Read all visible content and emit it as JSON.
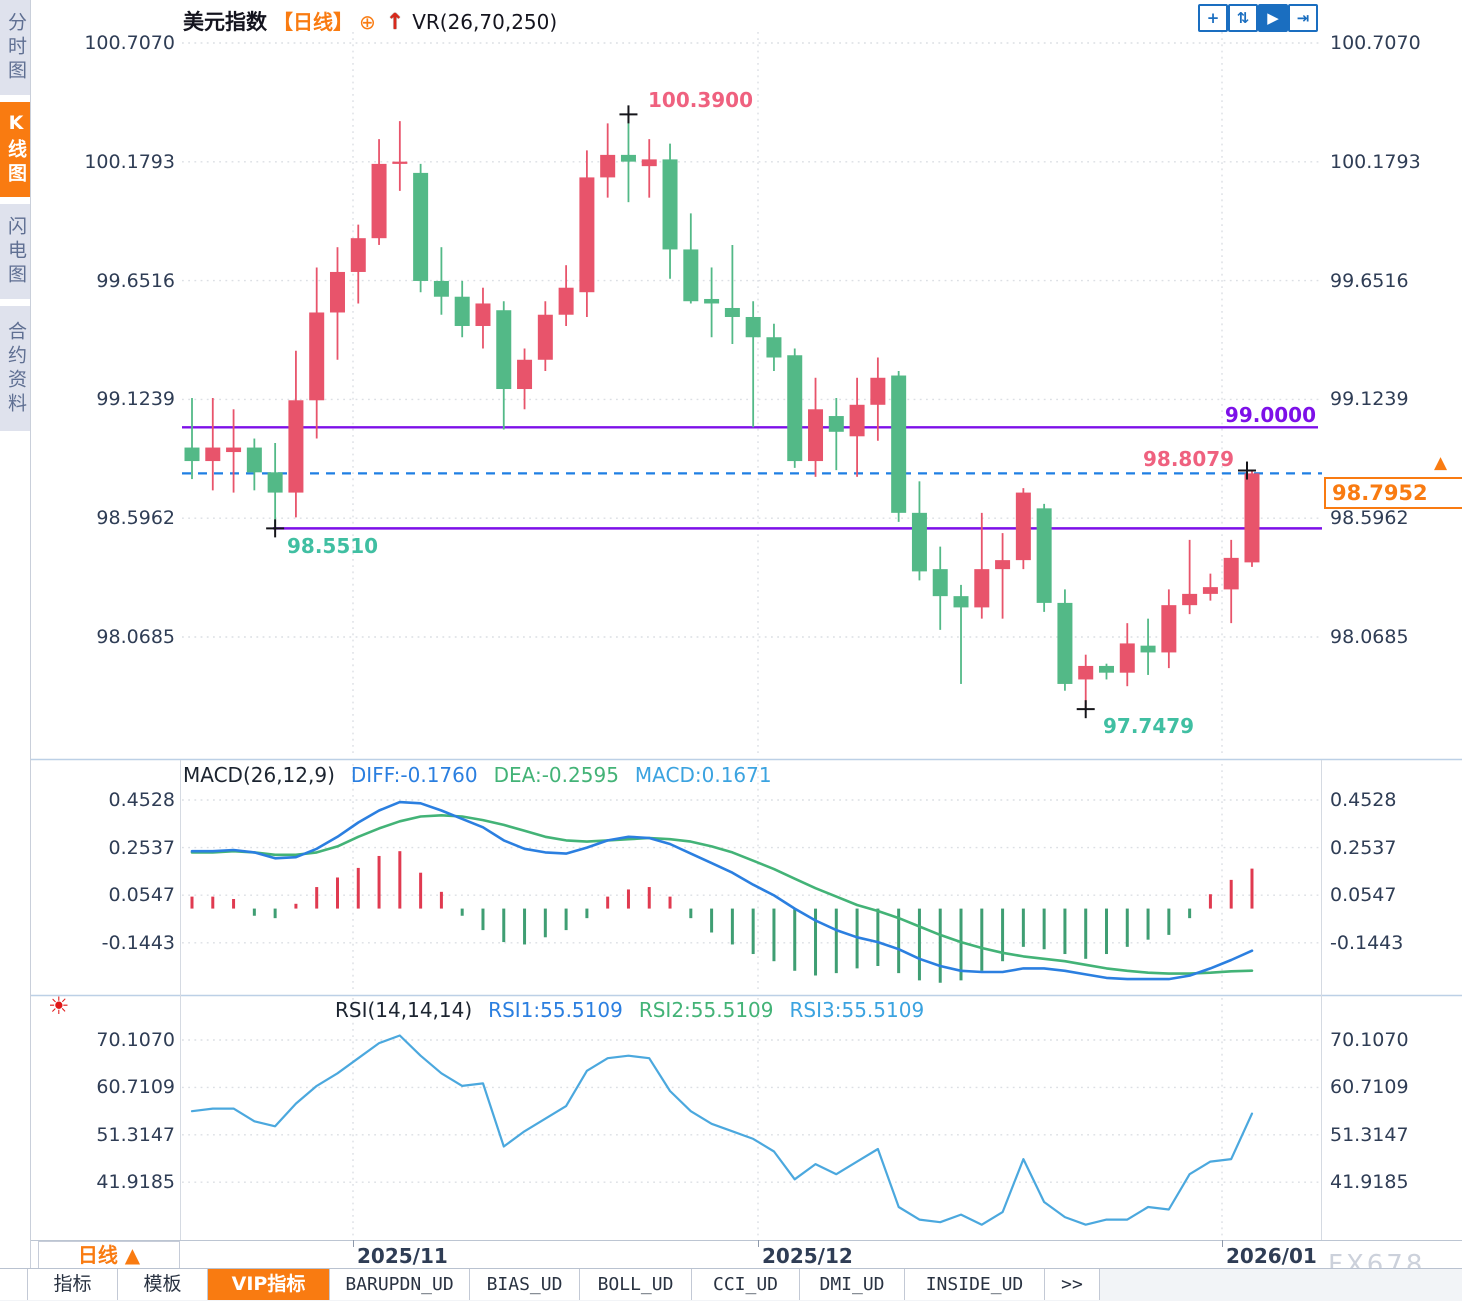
{
  "header": {
    "title": "美元指数",
    "period_tag": "【日线】",
    "plus_icon": "⊕",
    "arrow_icon": "↑",
    "indicator": "VR(26,70,250)"
  },
  "sidebar": {
    "items": [
      {
        "label": "分时图",
        "active": false
      },
      {
        "label": "K线图",
        "active": true
      },
      {
        "label": "闪电图",
        "active": false
      },
      {
        "label": "合约资料",
        "active": false
      }
    ]
  },
  "toolbar_icons": [
    {
      "name": "crosshair-icon",
      "glyph": "+",
      "active": false
    },
    {
      "name": "axis-scale-icon",
      "glyph": "⇅",
      "active": false
    },
    {
      "name": "play-icon",
      "glyph": "▶",
      "active": true
    },
    {
      "name": "exit-right-icon",
      "glyph": "⇥",
      "active": false
    }
  ],
  "price_axis": [
    "100.7070",
    "100.1793",
    "99.6516",
    "99.1239",
    "98.5962",
    "98.0685"
  ],
  "macd_axis": [
    "0.4528",
    "0.2537",
    "0.0547",
    "-0.1443"
  ],
  "rsi_axis": [
    "70.1070",
    "60.7109",
    "51.3147",
    "41.9185"
  ],
  "x_axis": [
    "2025/11",
    "2025/12",
    "2026/01"
  ],
  "annotations": {
    "swing_high": "100.3900",
    "early_low": "98.5510",
    "swing_low": "97.7479",
    "hline_level": "99.0000",
    "day_high": "98.8079",
    "last_price": "98.7952",
    "price_arrow": "▲"
  },
  "macd_header": {
    "name": "MACD(26,12,9)",
    "diff": "DIFF:-0.1760",
    "dea": "DEA:-0.2595",
    "macd": "MACD:0.1671"
  },
  "rsi_header": {
    "name": "RSI(14,14,14)",
    "rsi1": "RSI1:55.5109",
    "rsi2": "RSI2:55.5109",
    "rsi3": "RSI3:55.5109"
  },
  "sun_icon": "☀",
  "period_button": "日线 ▲",
  "tabs": [
    {
      "label": "指标",
      "active": false,
      "mono": false
    },
    {
      "label": "模板",
      "active": false,
      "mono": false
    },
    {
      "label": "VIP指标",
      "active": true,
      "mono": false
    },
    {
      "label": "BARUPDN_UD",
      "active": false,
      "mono": true
    },
    {
      "label": "BIAS_UD",
      "active": false,
      "mono": true
    },
    {
      "label": "BOLL_UD",
      "active": false,
      "mono": true
    },
    {
      "label": "CCI_UD",
      "active": false,
      "mono": true
    },
    {
      "label": "DMI_UD",
      "active": false,
      "mono": true
    },
    {
      "label": "INSIDE_UD",
      "active": false,
      "mono": true
    },
    {
      "label": ">>",
      "active": false,
      "mono": true
    }
  ],
  "watermark": "FX678",
  "colors": {
    "accent_orange": "#f97b11",
    "candle_up": "#e8546b",
    "candle_down": "#53b987",
    "purple_line": "#7d10e8",
    "dashed_blue": "#1f7fe3",
    "pink_label": "#ef617f",
    "teal_label": "#40bfa2",
    "diff_blue": "#2b7fe0",
    "dea_green": "#43b377",
    "macd_cyan": "#3ba3e0",
    "rsi_line": "#4ba8de",
    "hist_up": "#e03a50",
    "hist_down": "#3f9e73",
    "axis_text": "#2f3d55",
    "icon_blue": "#1a6ec0",
    "grid": "#dcdfe4"
  },
  "chart_data": {
    "type": "candlestick+macd+rsi",
    "title": "美元指数 日线 (US Dollar Index, daily)",
    "price_axis_ticks": [
      100.707,
      100.1793,
      99.6516,
      99.1239,
      98.5962,
      98.0685
    ],
    "macd_axis_ticks": [
      0.4528,
      0.2537,
      0.0547,
      -0.1443
    ],
    "rsi_axis_ticks": [
      70.107,
      60.7109,
      51.3147,
      41.9185
    ],
    "x_tick_labels": [
      "2025/11",
      "2025/12",
      "2026/01"
    ],
    "horizontal_lines": [
      99.0,
      98.551
    ],
    "last_price_line": 98.7952,
    "marked_points": {
      "high": 100.39,
      "early_low": 98.551,
      "low": 97.7479,
      "day_high": 98.8079
    },
    "candles_ohlc": [
      [
        98.91,
        99.13,
        98.77,
        98.85
      ],
      [
        98.85,
        99.13,
        98.72,
        98.91
      ],
      [
        98.89,
        99.08,
        98.71,
        98.91
      ],
      [
        98.91,
        98.95,
        98.72,
        98.8
      ],
      [
        98.8,
        98.93,
        98.551,
        98.71
      ],
      [
        98.71,
        99.34,
        98.6,
        99.12
      ],
      [
        99.12,
        99.71,
        98.95,
        99.51
      ],
      [
        99.51,
        99.8,
        99.3,
        99.69
      ],
      [
        99.69,
        99.9,
        99.55,
        99.84
      ],
      [
        99.84,
        100.28,
        99.81,
        100.17
      ],
      [
        100.17,
        100.36,
        100.05,
        100.18
      ],
      [
        100.13,
        100.17,
        99.6,
        99.65
      ],
      [
        99.65,
        99.8,
        99.5,
        99.58
      ],
      [
        99.58,
        99.65,
        99.4,
        99.45
      ],
      [
        99.45,
        99.62,
        99.35,
        99.55
      ],
      [
        99.52,
        99.56,
        98.99,
        99.17
      ],
      [
        99.17,
        99.35,
        99.08,
        99.3
      ],
      [
        99.3,
        99.56,
        99.25,
        99.5
      ],
      [
        99.5,
        99.72,
        99.45,
        99.62
      ],
      [
        99.6,
        100.23,
        99.49,
        100.11
      ],
      [
        100.11,
        100.35,
        100.02,
        100.21
      ],
      [
        100.21,
        100.39,
        100.0,
        100.18
      ],
      [
        100.16,
        100.28,
        100.02,
        100.19
      ],
      [
        100.19,
        100.26,
        99.66,
        99.79
      ],
      [
        99.79,
        99.95,
        99.55,
        99.56
      ],
      [
        99.57,
        99.71,
        99.4,
        99.55
      ],
      [
        99.53,
        99.81,
        99.37,
        99.49
      ],
      [
        99.49,
        99.56,
        99.0,
        99.4
      ],
      [
        99.4,
        99.46,
        99.25,
        99.31
      ],
      [
        99.32,
        99.35,
        98.82,
        98.85
      ],
      [
        98.85,
        99.22,
        98.78,
        99.08
      ],
      [
        99.05,
        99.13,
        98.81,
        98.98
      ],
      [
        98.96,
        99.22,
        98.78,
        99.1
      ],
      [
        99.1,
        99.31,
        98.94,
        99.22
      ],
      [
        99.23,
        99.25,
        98.58,
        98.62
      ],
      [
        98.62,
        98.76,
        98.32,
        98.36
      ],
      [
        98.37,
        98.47,
        98.1,
        98.25
      ],
      [
        98.25,
        98.3,
        97.86,
        98.2
      ],
      [
        98.2,
        98.62,
        98.15,
        98.37
      ],
      [
        98.37,
        98.53,
        98.15,
        98.41
      ],
      [
        98.41,
        98.73,
        98.37,
        98.71
      ],
      [
        98.64,
        98.66,
        98.18,
        98.22
      ],
      [
        98.22,
        98.28,
        97.83,
        97.86
      ],
      [
        97.88,
        97.99,
        97.7479,
        97.94
      ],
      [
        97.94,
        97.95,
        97.88,
        97.91
      ],
      [
        97.91,
        98.13,
        97.85,
        98.04
      ],
      [
        98.03,
        98.15,
        97.9,
        98.0
      ],
      [
        98.0,
        98.28,
        97.93,
        98.21
      ],
      [
        98.21,
        98.5,
        98.17,
        98.26
      ],
      [
        98.26,
        98.35,
        98.23,
        98.29
      ],
      [
        98.28,
        98.5,
        98.13,
        98.42
      ],
      [
        98.4,
        98.8079,
        98.38,
        98.7952
      ]
    ],
    "macd": {
      "diff": [
        0.24,
        0.24,
        0.245,
        0.235,
        0.21,
        0.215,
        0.25,
        0.3,
        0.36,
        0.41,
        0.445,
        0.44,
        0.41,
        0.375,
        0.34,
        0.285,
        0.25,
        0.235,
        0.23,
        0.255,
        0.285,
        0.3,
        0.295,
        0.27,
        0.23,
        0.19,
        0.15,
        0.1,
        0.055,
        0.0,
        -0.05,
        -0.09,
        -0.12,
        -0.14,
        -0.17,
        -0.21,
        -0.24,
        -0.26,
        -0.265,
        -0.265,
        -0.25,
        -0.25,
        -0.26,
        -0.275,
        -0.29,
        -0.295,
        -0.295,
        -0.295,
        -0.28,
        -0.25,
        -0.215,
        -0.176
      ],
      "dea": [
        0.235,
        0.235,
        0.24,
        0.235,
        0.225,
        0.225,
        0.235,
        0.26,
        0.3,
        0.335,
        0.365,
        0.385,
        0.39,
        0.385,
        0.37,
        0.35,
        0.325,
        0.3,
        0.285,
        0.28,
        0.285,
        0.29,
        0.295,
        0.29,
        0.28,
        0.26,
        0.235,
        0.2,
        0.165,
        0.125,
        0.085,
        0.05,
        0.015,
        -0.01,
        -0.04,
        -0.075,
        -0.11,
        -0.14,
        -0.165,
        -0.185,
        -0.2,
        -0.21,
        -0.22,
        -0.235,
        -0.25,
        -0.26,
        -0.268,
        -0.272,
        -0.272,
        -0.268,
        -0.262,
        -0.2595
      ],
      "hist": [
        0.05,
        0.05,
        0.04,
        -0.03,
        -0.04,
        0.02,
        0.09,
        0.13,
        0.17,
        0.22,
        0.24,
        0.15,
        0.07,
        -0.03,
        -0.09,
        -0.14,
        -0.15,
        -0.12,
        -0.09,
        -0.04,
        0.05,
        0.08,
        0.09,
        0.05,
        -0.04,
        -0.1,
        -0.15,
        -0.19,
        -0.22,
        -0.26,
        -0.28,
        -0.27,
        -0.25,
        -0.24,
        -0.27,
        -0.3,
        -0.31,
        -0.3,
        -0.26,
        -0.22,
        -0.16,
        -0.17,
        -0.19,
        -0.21,
        -0.19,
        -0.16,
        -0.13,
        -0.11,
        -0.04,
        0.06,
        0.12,
        0.1671
      ]
    },
    "rsi": [
      56.0,
      56.5,
      56.5,
      54.0,
      53.0,
      57.5,
      61.0,
      63.5,
      66.5,
      69.5,
      71.0,
      67.0,
      63.5,
      61.0,
      61.5,
      49.0,
      52.0,
      54.5,
      57.0,
      64.0,
      66.5,
      67.0,
      66.5,
      60.0,
      56.0,
      53.5,
      52.0,
      50.5,
      48.0,
      42.5,
      45.5,
      43.5,
      46.0,
      48.5,
      37.0,
      34.5,
      34.0,
      35.5,
      33.5,
      36.0,
      46.5,
      38.0,
      35.0,
      33.5,
      34.5,
      34.5,
      37.0,
      36.5,
      43.5,
      46.0,
      46.5,
      55.5109
    ]
  }
}
